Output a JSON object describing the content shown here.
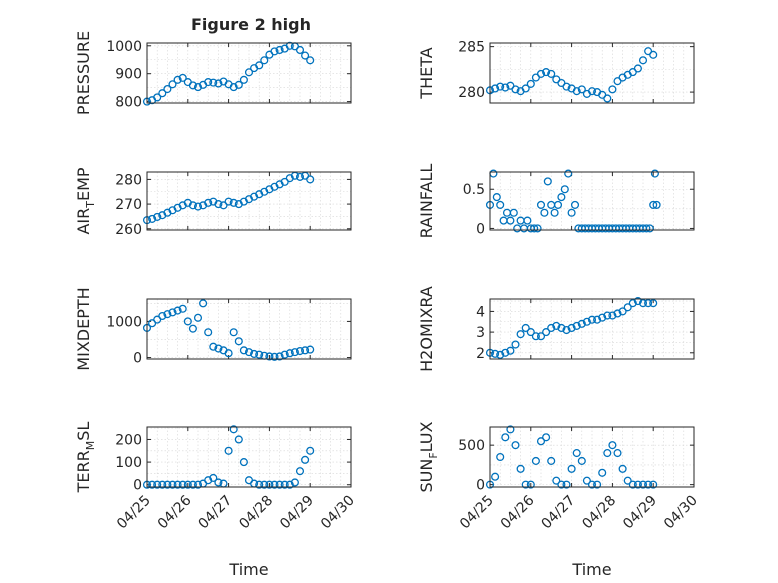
{
  "figure": {
    "title": "Figure 2 high"
  },
  "chart_data": [
    {
      "id": "pressure",
      "type": "scatter",
      "ylabel": "PRESSURE",
      "ylabel_sub": "",
      "xlim": [
        "04/25",
        "04/30"
      ],
      "ylim": [
        795,
        1010
      ],
      "yticks": [
        800,
        900,
        1000
      ],
      "grid": true,
      "color": "#0072BD",
      "x": [
        "04/25",
        "04/25 03:00",
        "04/25 06:00",
        "04/25 09:00",
        "04/25 12:00",
        "04/25 15:00",
        "04/25 18:00",
        "04/25 21:00",
        "04/26",
        "04/26 03:00",
        "04/26 06:00",
        "04/26 09:00",
        "04/26 12:00",
        "04/26 15:00",
        "04/26 18:00",
        "04/26 21:00",
        "04/27",
        "04/27 03:00",
        "04/27 06:00",
        "04/27 09:00",
        "04/27 12:00",
        "04/27 15:00",
        "04/27 18:00",
        "04/27 21:00",
        "04/28",
        "04/28 03:00",
        "04/28 06:00",
        "04/28 09:00",
        "04/28 12:00",
        "04/28 15:00",
        "04/28 18:00",
        "04/28 21:00",
        "04/29"
      ],
      "y": [
        800,
        805,
        815,
        830,
        845,
        862,
        878,
        885,
        870,
        858,
        852,
        860,
        870,
        868,
        865,
        872,
        862,
        852,
        860,
        878,
        905,
        920,
        930,
        948,
        968,
        980,
        985,
        990,
        1000,
        998,
        985,
        965,
        948
      ]
    },
    {
      "id": "theta",
      "type": "scatter",
      "ylabel": "THETA",
      "ylabel_sub": "",
      "xlim": [
        "04/25",
        "04/30"
      ],
      "ylim": [
        278.8,
        285.4
      ],
      "yticks": [
        280,
        285
      ],
      "grid": true,
      "color": "#0072BD",
      "x": [
        "04/25",
        "04/25 03:00",
        "04/25 06:00",
        "04/25 09:00",
        "04/25 12:00",
        "04/25 15:00",
        "04/25 18:00",
        "04/25 21:00",
        "04/26",
        "04/26 03:00",
        "04/26 06:00",
        "04/26 09:00",
        "04/26 12:00",
        "04/26 15:00",
        "04/26 18:00",
        "04/26 21:00",
        "04/27",
        "04/27 03:00",
        "04/27 06:00",
        "04/27 09:00",
        "04/27 12:00",
        "04/27 15:00",
        "04/27 18:00",
        "04/27 21:00",
        "04/28",
        "04/28 03:00",
        "04/28 06:00",
        "04/28 09:00",
        "04/28 12:00",
        "04/28 15:00",
        "04/28 18:00",
        "04/28 21:00",
        "04/29"
      ],
      "y": [
        280.2,
        280.4,
        280.6,
        280.5,
        280.7,
        280.3,
        280.1,
        280.4,
        280.9,
        281.6,
        282.0,
        282.2,
        282.0,
        281.4,
        281.0,
        280.6,
        280.4,
        280.1,
        280.3,
        279.8,
        280.1,
        280.0,
        279.7,
        279.3,
        280.3,
        281.2,
        281.6,
        281.9,
        282.2,
        282.6,
        283.5,
        284.5,
        284.1
      ]
    },
    {
      "id": "air_temp",
      "type": "scatter",
      "ylabel": "AIR",
      "ylabel_sub": "T",
      "ylabel_tail": "EMP",
      "xlim": [
        "04/25",
        "04/30"
      ],
      "ylim": [
        259.5,
        283
      ],
      "yticks": [
        260,
        270,
        280
      ],
      "grid": true,
      "color": "#0072BD",
      "x": [
        "04/25",
        "04/25 03:00",
        "04/25 06:00",
        "04/25 09:00",
        "04/25 12:00",
        "04/25 15:00",
        "04/25 18:00",
        "04/25 21:00",
        "04/26",
        "04/26 03:00",
        "04/26 06:00",
        "04/26 09:00",
        "04/26 12:00",
        "04/26 15:00",
        "04/26 18:00",
        "04/26 21:00",
        "04/27",
        "04/27 03:00",
        "04/27 06:00",
        "04/27 09:00",
        "04/27 12:00",
        "04/27 15:00",
        "04/27 18:00",
        "04/27 21:00",
        "04/28",
        "04/28 03:00",
        "04/28 06:00",
        "04/28 09:00",
        "04/28 12:00",
        "04/28 15:00",
        "04/28 18:00",
        "04/28 21:00",
        "04/29"
      ],
      "y": [
        263.5,
        264.0,
        264.8,
        265.5,
        266.5,
        267.5,
        268.5,
        269.5,
        270.5,
        269.5,
        269.0,
        269.5,
        270.5,
        271.0,
        270.0,
        269.5,
        271.0,
        270.5,
        270.0,
        271.0,
        272.0,
        273.0,
        274.0,
        275.0,
        276.0,
        277.0,
        278.0,
        279.0,
        280.5,
        281.5,
        281.0,
        281.5,
        280.0
      ]
    },
    {
      "id": "rainfall",
      "type": "scatter",
      "ylabel": "RAINFALL",
      "ylabel_sub": "",
      "xlim": [
        "04/25",
        "04/30"
      ],
      "ylim": [
        -0.02,
        0.72
      ],
      "yticks": [
        0,
        0.5
      ],
      "grid": true,
      "color": "#0072BD",
      "x": [
        "04/25",
        "04/25 02:00",
        "04/25 04:00",
        "04/25 06:00",
        "04/25 08:00",
        "04/25 10:00",
        "04/25 12:00",
        "04/25 14:00",
        "04/25 16:00",
        "04/25 18:00",
        "04/25 20:00",
        "04/25 22:00",
        "04/26",
        "04/26 02:00",
        "04/26 04:00",
        "04/26 06:00",
        "04/26 08:00",
        "04/26 10:00",
        "04/26 12:00",
        "04/26 14:00",
        "04/26 16:00",
        "04/26 18:00",
        "04/26 20:00",
        "04/26 22:00",
        "04/27",
        "04/27 02:00",
        "04/27 04:00",
        "04/27 06:00",
        "04/27 08:00",
        "04/27 10:00",
        "04/27 12:00",
        "04/27 14:00",
        "04/27 16:00",
        "04/27 18:00",
        "04/27 20:00",
        "04/27 22:00",
        "04/28",
        "04/28 02:00",
        "04/28 04:00",
        "04/28 06:00",
        "04/28 08:00",
        "04/28 10:00",
        "04/28 12:00",
        "04/28 14:00",
        "04/28 16:00",
        "04/28 18:00",
        "04/28 20:00",
        "04/28 22:00",
        "04/29",
        "04/29 01:00",
        "04/29 02:00"
      ],
      "y": [
        0.3,
        0.7,
        0.4,
        0.3,
        0.1,
        0.2,
        0.1,
        0.2,
        0,
        0.1,
        0,
        0.1,
        0,
        0,
        0,
        0.3,
        0.2,
        0.6,
        0.3,
        0.2,
        0.3,
        0.4,
        0.5,
        0.7,
        0.2,
        0.3,
        0,
        0,
        0,
        0,
        0,
        0,
        0,
        0,
        0,
        0,
        0,
        0,
        0,
        0,
        0,
        0,
        0,
        0,
        0,
        0,
        0,
        0,
        0.3,
        0.7,
        0.3
      ]
    },
    {
      "id": "mixdepth",
      "type": "scatter",
      "ylabel": "MIXDEPTH",
      "ylabel_sub": "",
      "xlim": [
        "04/25",
        "04/30"
      ],
      "ylim": [
        -40,
        1620
      ],
      "yticks": [
        0,
        1000
      ],
      "grid": true,
      "color": "#0072BD",
      "x": [
        "04/25",
        "04/25 03:00",
        "04/25 06:00",
        "04/25 09:00",
        "04/25 12:00",
        "04/25 15:00",
        "04/25 18:00",
        "04/25 21:00",
        "04/26",
        "04/26 03:00",
        "04/26 06:00",
        "04/26 09:00",
        "04/26 12:00",
        "04/26 15:00",
        "04/26 18:00",
        "04/26 21:00",
        "04/27",
        "04/27 03:00",
        "04/27 06:00",
        "04/27 09:00",
        "04/27 12:00",
        "04/27 15:00",
        "04/27 18:00",
        "04/27 21:00",
        "04/28",
        "04/28 03:00",
        "04/28 06:00",
        "04/28 09:00",
        "04/28 12:00",
        "04/28 15:00",
        "04/28 18:00",
        "04/28 21:00",
        "04/29"
      ],
      "y": [
        820,
        950,
        1050,
        1150,
        1200,
        1250,
        1300,
        1350,
        1000,
        800,
        1100,
        1500,
        700,
        300,
        250,
        200,
        120,
        700,
        450,
        200,
        150,
        100,
        80,
        50,
        30,
        20,
        30,
        80,
        120,
        150,
        180,
        200,
        220
      ]
    },
    {
      "id": "h2omixra",
      "type": "scatter",
      "ylabel": "H2OMIXRA",
      "ylabel_sub": "",
      "xlim": [
        "04/25",
        "04/30"
      ],
      "ylim": [
        1.7,
        4.6
      ],
      "yticks": [
        2,
        3,
        4
      ],
      "grid": true,
      "color": "#0072BD",
      "x": [
        "04/25",
        "04/25 03:00",
        "04/25 06:00",
        "04/25 09:00",
        "04/25 12:00",
        "04/25 15:00",
        "04/25 18:00",
        "04/25 21:00",
        "04/26",
        "04/26 03:00",
        "04/26 06:00",
        "04/26 09:00",
        "04/26 12:00",
        "04/26 15:00",
        "04/26 18:00",
        "04/26 21:00",
        "04/27",
        "04/27 03:00",
        "04/27 06:00",
        "04/27 09:00",
        "04/27 12:00",
        "04/27 15:00",
        "04/27 18:00",
        "04/27 21:00",
        "04/28",
        "04/28 03:00",
        "04/28 06:00",
        "04/28 09:00",
        "04/28 12:00",
        "04/28 15:00",
        "04/28 18:00",
        "04/28 21:00",
        "04/29"
      ],
      "y": [
        2.0,
        1.95,
        1.9,
        2.0,
        2.1,
        2.4,
        2.9,
        3.2,
        3.0,
        2.8,
        2.8,
        3.0,
        3.2,
        3.3,
        3.2,
        3.1,
        3.2,
        3.3,
        3.4,
        3.5,
        3.6,
        3.6,
        3.7,
        3.8,
        3.8,
        3.9,
        4.0,
        4.2,
        4.4,
        4.5,
        4.4,
        4.4,
        4.4
      ]
    },
    {
      "id": "terr_msl",
      "type": "scatter",
      "ylabel": "TERR",
      "ylabel_sub": "M",
      "ylabel_tail": "SL",
      "xlim": [
        "04/25",
        "04/30"
      ],
      "ylim": [
        -10,
        255
      ],
      "yticks": [
        0,
        100,
        200
      ],
      "xticks": [
        "04/25",
        "04/26",
        "04/27",
        "04/28",
        "04/29",
        "04/30"
      ],
      "xlabel": "Time",
      "grid": true,
      "color": "#0072BD",
      "x": [
        "04/25",
        "04/25 03:00",
        "04/25 06:00",
        "04/25 09:00",
        "04/25 12:00",
        "04/25 15:00",
        "04/25 18:00",
        "04/25 21:00",
        "04/26",
        "04/26 03:00",
        "04/26 06:00",
        "04/26 09:00",
        "04/26 12:00",
        "04/26 15:00",
        "04/26 18:00",
        "04/26 21:00",
        "04/27",
        "04/27 03:00",
        "04/27 06:00",
        "04/27 09:00",
        "04/27 12:00",
        "04/27 15:00",
        "04/27 18:00",
        "04/27 21:00",
        "04/28",
        "04/28 03:00",
        "04/28 06:00",
        "04/28 09:00",
        "04/28 12:00",
        "04/28 15:00",
        "04/28 18:00",
        "04/28 21:00",
        "04/29"
      ],
      "y": [
        0,
        0,
        0,
        0,
        0,
        0,
        0,
        0,
        0,
        0,
        0,
        5,
        20,
        30,
        10,
        5,
        150,
        245,
        200,
        100,
        20,
        5,
        0,
        0,
        0,
        0,
        0,
        0,
        0,
        10,
        60,
        110,
        150
      ]
    },
    {
      "id": "sun_flux",
      "type": "scatter",
      "ylabel": "SUN",
      "ylabel_sub": "F",
      "ylabel_tail": "LUX",
      "xlim": [
        "04/25",
        "04/30"
      ],
      "ylim": [
        -30,
        730
      ],
      "yticks": [
        0,
        500
      ],
      "xticks": [
        "04/25",
        "04/26",
        "04/27",
        "04/28",
        "04/29",
        "04/30"
      ],
      "xlabel": "Time",
      "grid": true,
      "color": "#0072BD",
      "x": [
        "04/25",
        "04/25 03:00",
        "04/25 06:00",
        "04/25 09:00",
        "04/25 12:00",
        "04/25 15:00",
        "04/25 18:00",
        "04/25 21:00",
        "04/26",
        "04/26 03:00",
        "04/26 06:00",
        "04/26 09:00",
        "04/26 12:00",
        "04/26 15:00",
        "04/26 18:00",
        "04/26 21:00",
        "04/27",
        "04/27 03:00",
        "04/27 06:00",
        "04/27 09:00",
        "04/27 12:00",
        "04/27 15:00",
        "04/27 18:00",
        "04/27 21:00",
        "04/28",
        "04/28 03:00",
        "04/28 06:00",
        "04/28 09:00",
        "04/28 12:00",
        "04/28 15:00",
        "04/28 18:00",
        "04/28 21:00",
        "04/29"
      ],
      "y": [
        0,
        100,
        350,
        600,
        700,
        500,
        200,
        0,
        0,
        300,
        550,
        600,
        300,
        50,
        0,
        0,
        200,
        400,
        300,
        50,
        0,
        0,
        150,
        400,
        500,
        400,
        200,
        50,
        0,
        0,
        0,
        0,
        0
      ]
    }
  ]
}
